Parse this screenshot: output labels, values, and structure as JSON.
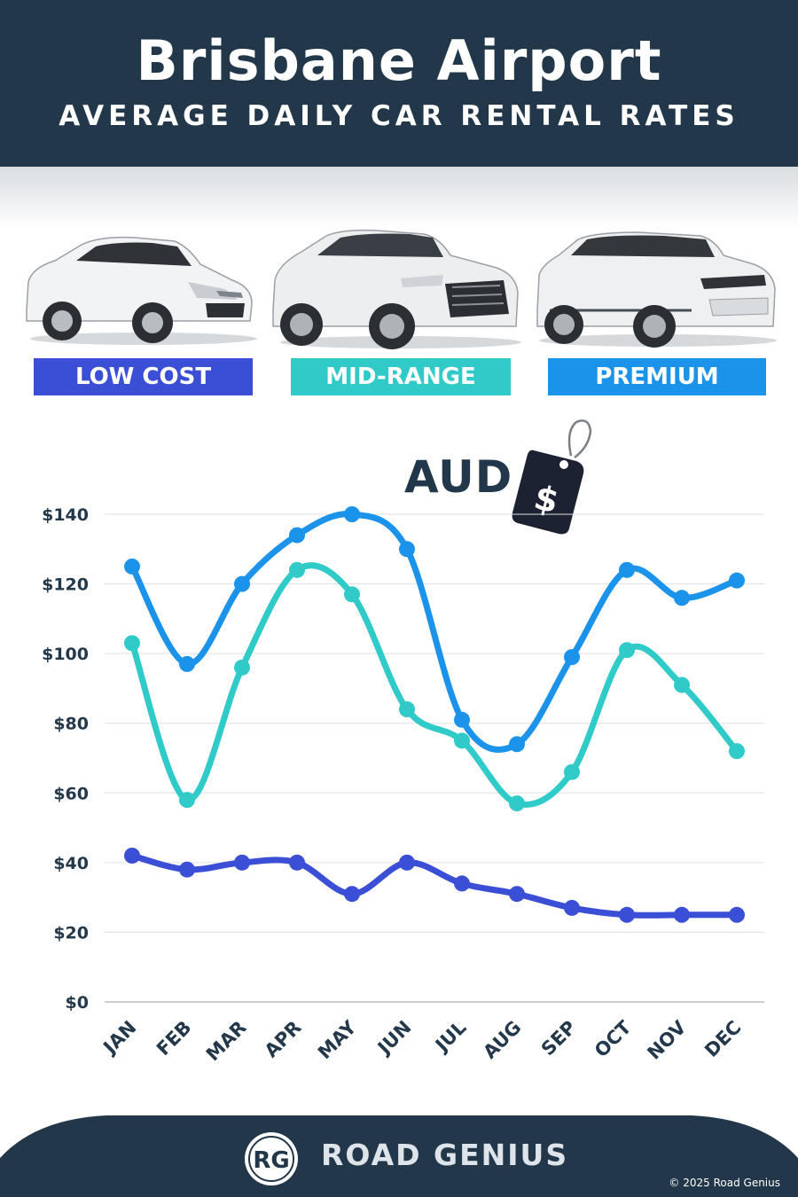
{
  "header": {
    "title": "Brisbane Airport",
    "subtitle": "AVERAGE DAILY CAR RENTAL RATES"
  },
  "categories": {
    "low": "LOW COST",
    "mid": "MID-RANGE",
    "premium": "PREMIUM"
  },
  "currency": {
    "label": "AUD",
    "tag_symbol": "$"
  },
  "colors": {
    "header_bg": "#22384a",
    "low": "#3b4fd6",
    "mid": "#30cbc9",
    "premium": "#1b93ea"
  },
  "chart_data": {
    "type": "line",
    "x": [
      "JAN",
      "FEB",
      "MAR",
      "APR",
      "MAY",
      "JUN",
      "JUL",
      "AUG",
      "SEP",
      "OCT",
      "NOV",
      "DEC"
    ],
    "y_ticks": [
      "$0",
      "$20",
      "$40",
      "$60",
      "$80",
      "$100",
      "$120",
      "$140"
    ],
    "ylim": [
      0,
      140
    ],
    "grid": true,
    "series": [
      {
        "key": "premium",
        "values": [
          125,
          97,
          120,
          134,
          140,
          130,
          81,
          74,
          99,
          124,
          116,
          121
        ]
      },
      {
        "key": "mid",
        "values": [
          103,
          58,
          96,
          124,
          117,
          84,
          75,
          57,
          66,
          101,
          91,
          72
        ]
      },
      {
        "key": "low",
        "values": [
          42,
          38,
          40,
          40,
          31,
          40,
          34,
          31,
          27,
          25,
          25,
          25
        ]
      }
    ]
  },
  "footer": {
    "logo_text": "RG",
    "brand": "ROAD GENIUS",
    "copyright": "© 2025 Road Genius"
  }
}
